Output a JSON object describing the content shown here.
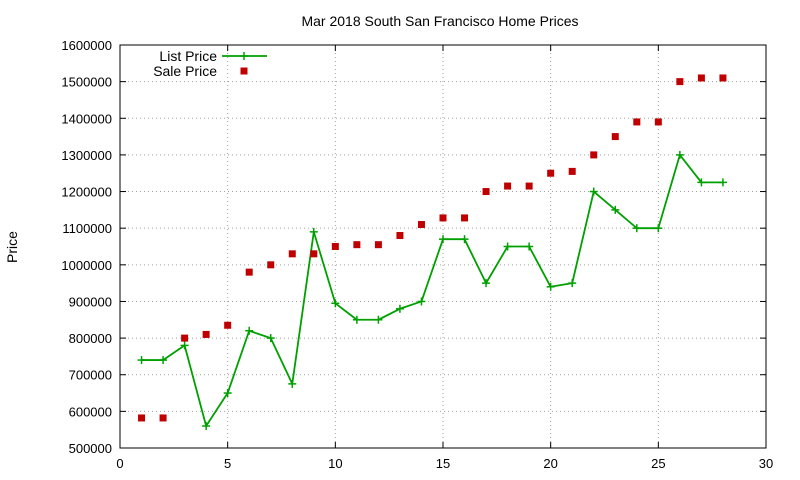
{
  "chart_data": {
    "type": "line",
    "title": "Mar 2018 South San Francisco Home Prices",
    "xlabel": "",
    "ylabel": "Price",
    "xlim": [
      0,
      30
    ],
    "ylim": [
      500000,
      1600000
    ],
    "x_ticks": [
      0,
      5,
      10,
      15,
      20,
      25,
      30
    ],
    "y_ticks": [
      500000,
      600000,
      700000,
      800000,
      900000,
      1000000,
      1100000,
      1200000,
      1300000,
      1400000,
      1500000,
      1600000
    ],
    "grid": true,
    "legend_position": "top-left",
    "series": [
      {
        "name": "List Price",
        "style": "line-plus",
        "color": "#00a000",
        "x": [
          1,
          2,
          3,
          4,
          5,
          6,
          7,
          8,
          9,
          10,
          11,
          12,
          13,
          14,
          15,
          16,
          17,
          18,
          19,
          20,
          21,
          22,
          23,
          24,
          25,
          26,
          27,
          28
        ],
        "values": [
          740000,
          740000,
          780000,
          560000,
          650000,
          820000,
          800000,
          675000,
          1090000,
          895000,
          850000,
          850000,
          880000,
          900000,
          1070000,
          1070000,
          950000,
          1050000,
          1050000,
          940000,
          950000,
          1200000,
          1150000,
          1100000,
          1100000,
          1300000,
          1225000,
          1225000
        ]
      },
      {
        "name": "Sale Price",
        "style": "square-markers",
        "color": "#c00000",
        "x": [
          1,
          2,
          3,
          4,
          5,
          6,
          7,
          8,
          9,
          10,
          11,
          12,
          13,
          14,
          15,
          16,
          17,
          18,
          19,
          20,
          21,
          22,
          23,
          24,
          25,
          26,
          27,
          28
        ],
        "values": [
          582000,
          582000,
          800000,
          810000,
          835000,
          980000,
          1000000,
          1030000,
          1030000,
          1050000,
          1055000,
          1055000,
          1080000,
          1110000,
          1128000,
          1128000,
          1200000,
          1215000,
          1215000,
          1250000,
          1255000,
          1300000,
          1350000,
          1390000,
          1390000,
          1500000,
          1510000,
          1510000
        ]
      }
    ]
  }
}
